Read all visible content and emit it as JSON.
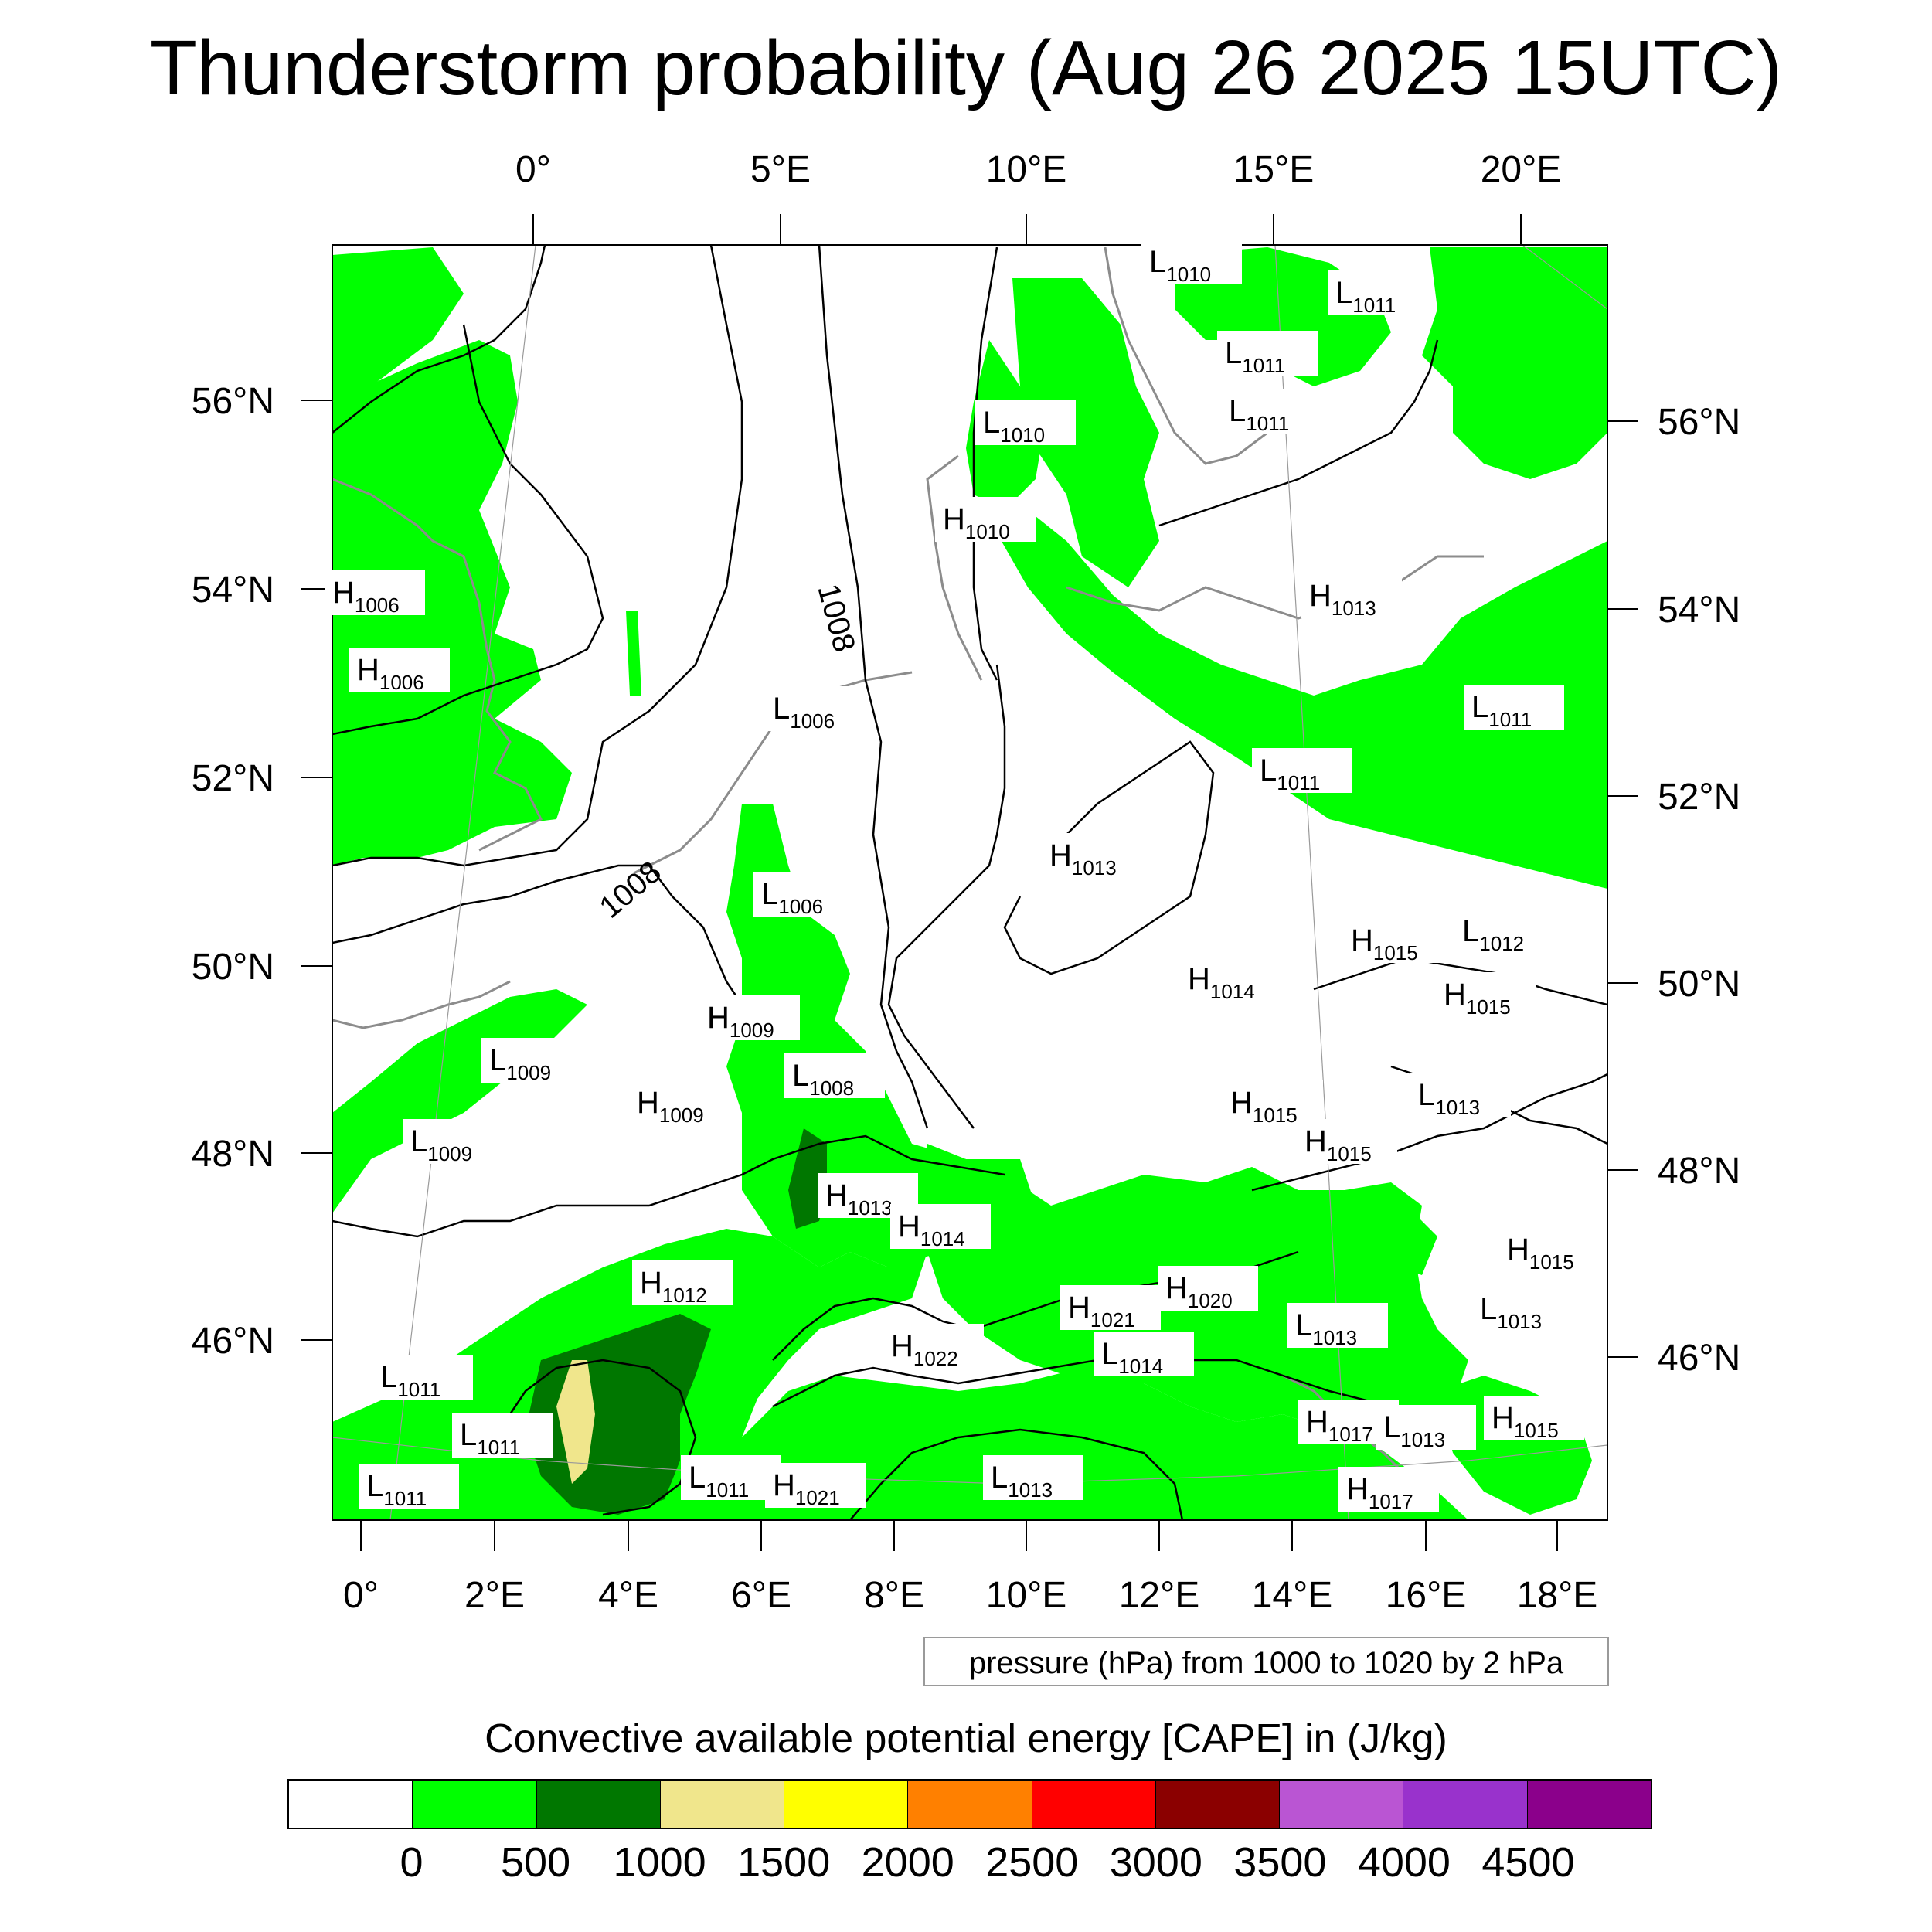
{
  "title": "Thunderstorm probability (Aug 26 2025 15UTC)",
  "top_axis_labels": [
    "0°",
    "5°E",
    "10°E",
    "15°E",
    "20°E"
  ],
  "left_axis_labels": [
    "56°N",
    "54°N",
    "52°N",
    "50°N",
    "48°N",
    "46°N"
  ],
  "right_axis_labels": [
    "56°N",
    "54°N",
    "52°N",
    "50°N",
    "48°N",
    "46°N"
  ],
  "bottom_axis_labels": [
    "0°",
    "2°E",
    "4°E",
    "6°E",
    "8°E",
    "10°E",
    "12°E",
    "14°E",
    "16°E",
    "18°E"
  ],
  "isobar_labels": [
    "1008",
    "1008"
  ],
  "pressure_centers": [
    {
      "letter": "L",
      "value": "1010"
    },
    {
      "letter": "L",
      "value": "1011"
    },
    {
      "letter": "L",
      "value": "1011"
    },
    {
      "letter": "L",
      "value": "1011"
    },
    {
      "letter": "L",
      "value": "1010"
    },
    {
      "letter": "H",
      "value": "1010"
    },
    {
      "letter": "H",
      "value": "1006"
    },
    {
      "letter": "H",
      "value": "1006"
    },
    {
      "letter": "H",
      "value": "1013"
    },
    {
      "letter": "L",
      "value": "1006"
    },
    {
      "letter": "L",
      "value": "1011"
    },
    {
      "letter": "L",
      "value": "1011"
    },
    {
      "letter": "H",
      "value": "1013"
    },
    {
      "letter": "L",
      "value": "1006"
    },
    {
      "letter": "H",
      "value": "1015"
    },
    {
      "letter": "L",
      "value": "1012"
    },
    {
      "letter": "H",
      "value": "1014"
    },
    {
      "letter": "H",
      "value": "1009"
    },
    {
      "letter": "H",
      "value": "1015"
    },
    {
      "letter": "L",
      "value": "1009"
    },
    {
      "letter": "L",
      "value": "1008"
    },
    {
      "letter": "H",
      "value": "1009"
    },
    {
      "letter": "L",
      "value": "1013"
    },
    {
      "letter": "H",
      "value": "1015"
    },
    {
      "letter": "H",
      "value": "1015"
    },
    {
      "letter": "L",
      "value": "1009"
    },
    {
      "letter": "H",
      "value": "1013"
    },
    {
      "letter": "H",
      "value": "1014"
    },
    {
      "letter": "H",
      "value": "1015"
    },
    {
      "letter": "H",
      "value": "1012"
    },
    {
      "letter": "H",
      "value": "1020"
    },
    {
      "letter": "H",
      "value": "1021"
    },
    {
      "letter": "L",
      "value": "1013"
    },
    {
      "letter": "L",
      "value": "1013"
    },
    {
      "letter": "H",
      "value": "1022"
    },
    {
      "letter": "L",
      "value": "1014"
    },
    {
      "letter": "L",
      "value": "1011"
    },
    {
      "letter": "L",
      "value": "1011"
    },
    {
      "letter": "H",
      "value": "1017"
    },
    {
      "letter": "L",
      "value": "1013"
    },
    {
      "letter": "H",
      "value": "1015"
    },
    {
      "letter": "L",
      "value": "1011"
    },
    {
      "letter": "L",
      "value": "1011"
    },
    {
      "letter": "H",
      "value": "1021"
    },
    {
      "letter": "L",
      "value": "1013"
    },
    {
      "letter": "H",
      "value": "1017"
    }
  ],
  "pressure_note": "pressure (hPa) from 1000 to 1020 by 2 hPa",
  "cape_title": "Convective available potential energy [CAPE] in (J/kg)",
  "colorbar": {
    "colors": [
      "#ffffff",
      "#00ff00",
      "#007700",
      "#f0e68c",
      "#ffff00",
      "#ff8000",
      "#ff0000",
      "#8b0000",
      "#ba55d3",
      "#9932cc",
      "#8b008b"
    ],
    "labels": [
      "0",
      "500",
      "1000",
      "1500",
      "2000",
      "2500",
      "3000",
      "3500",
      "4000",
      "4500"
    ]
  },
  "colors": {
    "cape_0_500": "#00ff00",
    "cape_500_1000": "#007700",
    "cape_1000_1500": "#f0e68c",
    "coastline": "#8c8c8c",
    "isobar": "#000000"
  }
}
